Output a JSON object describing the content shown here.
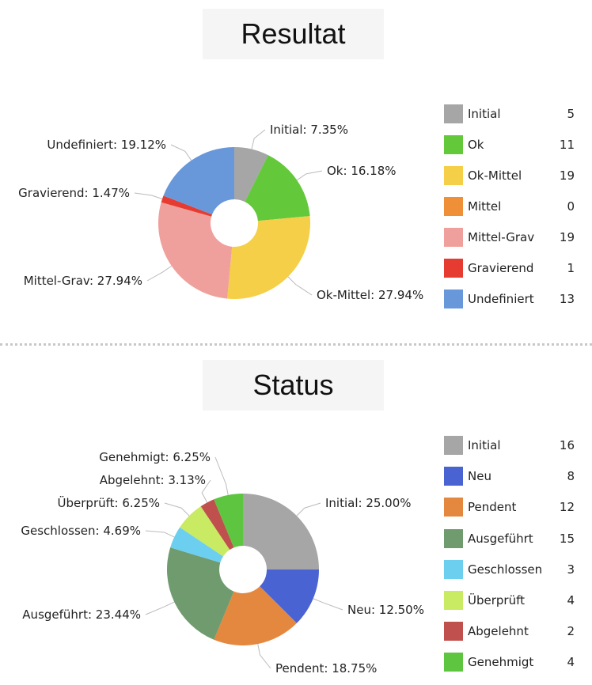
{
  "chart_data": [
    {
      "type": "pie",
      "title": "Resultat",
      "legend_position": "right",
      "slices": [
        {
          "label": "Initial",
          "value": 5,
          "percent_label": "Initial: 7.35%",
          "color": "#a6a6a6"
        },
        {
          "label": "Ok",
          "value": 11,
          "percent_label": "Ok: 16.18%",
          "color": "#63c93b"
        },
        {
          "label": "Ok-Mittel",
          "value": 19,
          "percent_label": "Ok-Mittel: 27.94%",
          "color": "#f5cf47"
        },
        {
          "label": "Mittel",
          "value": 0,
          "percent_label": "",
          "color": "#ef8f38"
        },
        {
          "label": "Mittel-Grav",
          "value": 19,
          "percent_label": "Mittel-Grav: 27.94%",
          "color": "#f0a09c"
        },
        {
          "label": "Gravierend",
          "value": 1,
          "percent_label": "Gravierend: 1.47%",
          "color": "#e63b30"
        },
        {
          "label": "Undefiniert",
          "value": 13,
          "percent_label": "Undefiniert: 19.12%",
          "color": "#6898da"
        }
      ]
    },
    {
      "type": "pie",
      "title": "Status",
      "legend_position": "right",
      "slices": [
        {
          "label": "Initial",
          "value": 16,
          "percent_label": "Initial: 25.00%",
          "color": "#a6a6a6"
        },
        {
          "label": "Neu",
          "value": 8,
          "percent_label": "Neu: 12.50%",
          "color": "#4a63d2"
        },
        {
          "label": "Pendent",
          "value": 12,
          "percent_label": "Pendent: 18.75%",
          "color": "#e4883f"
        },
        {
          "label": "Ausgeführt",
          "value": 15,
          "percent_label": "Ausgeführt: 23.44%",
          "color": "#6f9b6e"
        },
        {
          "label": "Geschlossen",
          "value": 3,
          "percent_label": "Geschlossen: 4.69%",
          "color": "#6ccfef"
        },
        {
          "label": "Überprüft",
          "value": 4,
          "percent_label": "Überprüft: 6.25%",
          "color": "#c9ea63"
        },
        {
          "label": "Abgelehnt",
          "value": 2,
          "percent_label": "Abgelehnt: 3.13%",
          "color": "#c0504d"
        },
        {
          "label": "Genehmigt",
          "value": 4,
          "percent_label": "Genehmigt: 6.25%",
          "color": "#5dc540"
        }
      ]
    }
  ]
}
